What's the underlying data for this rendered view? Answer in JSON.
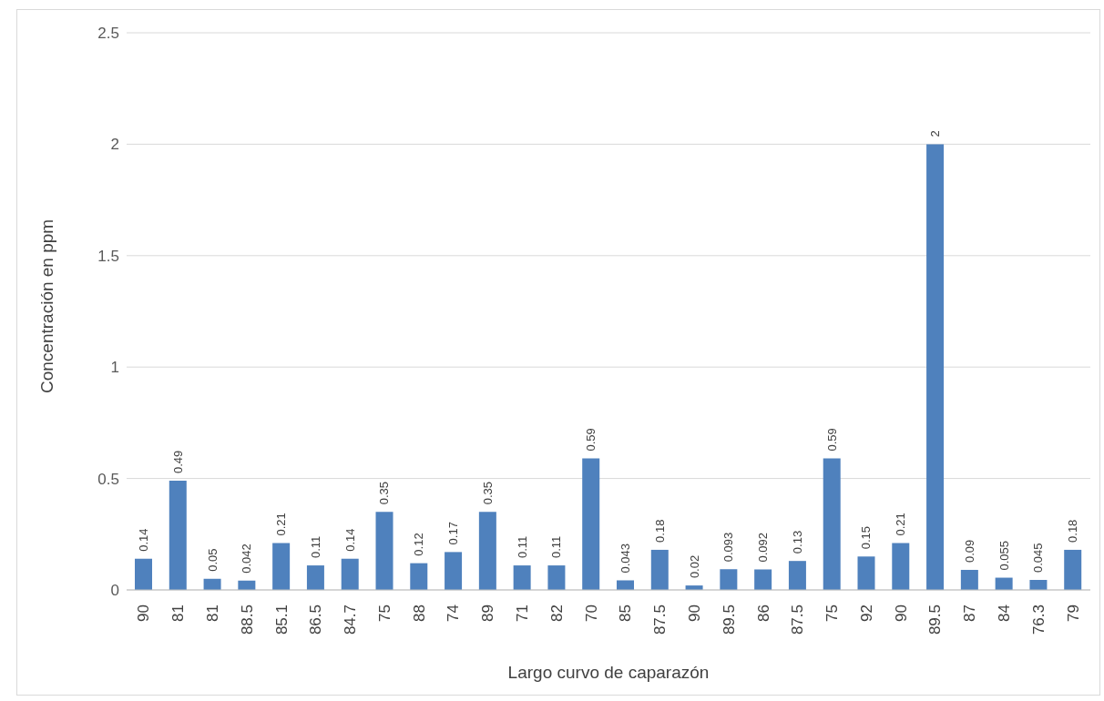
{
  "chart_data": {
    "type": "bar",
    "xlabel": "Largo curvo de caparazón",
    "ylabel": "Concentración  en ppm",
    "categories": [
      "90",
      "81",
      "81",
      "88.5",
      "85.1",
      "86.5",
      "84.7",
      "75",
      "88",
      "74",
      "89",
      "71",
      "82",
      "70",
      "85",
      "87.5",
      "90",
      "89.5",
      "86",
      "87.5",
      "75",
      "92",
      "90",
      "89.5",
      "87",
      "84",
      "76.3",
      "79"
    ],
    "values": [
      0.14,
      0.49,
      0.05,
      0.042,
      0.21,
      0.11,
      0.14,
      0.35,
      0.12,
      0.17,
      0.35,
      0.11,
      0.11,
      0.59,
      0.043,
      0.18,
      0.02,
      0.093,
      0.092,
      0.13,
      0.59,
      0.15,
      0.21,
      2,
      0.09,
      0.055,
      0.045,
      0.18
    ],
    "color": "#4f81bd",
    "ylim": [
      0,
      2.5
    ],
    "yticks": [
      0,
      0.5,
      1,
      1.5,
      2,
      2.5
    ],
    "grid": "y",
    "data_labels": true,
    "legend": false
  }
}
